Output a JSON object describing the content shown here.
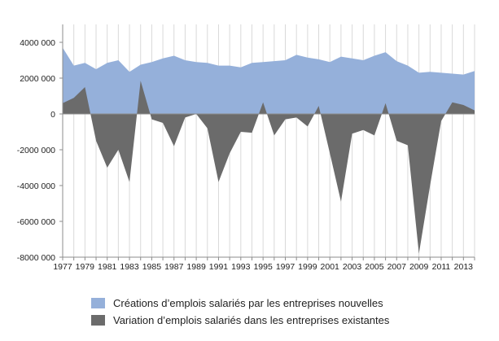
{
  "chart_data": {
    "type": "area",
    "title": "",
    "xlabel": "",
    "ylabel": "",
    "x": [
      1977,
      1978,
      1979,
      1980,
      1981,
      1982,
      1983,
      1984,
      1985,
      1986,
      1987,
      1988,
      1989,
      1990,
      1991,
      1992,
      1993,
      1994,
      1995,
      1996,
      1997,
      1998,
      1999,
      2000,
      2001,
      2002,
      2003,
      2004,
      2005,
      2006,
      2007,
      2008,
      2009,
      2010,
      2011,
      2012,
      2013,
      2014
    ],
    "x_tick_labels": [
      "1977",
      "1979",
      "1981",
      "1983",
      "1985",
      "1987",
      "1989",
      "1991",
      "1993",
      "1995",
      "1997",
      "1999",
      "2001",
      "2003",
      "2005",
      "2007",
      "2009",
      "2011",
      "2013"
    ],
    "x_tick_values": [
      1977,
      1979,
      1981,
      1983,
      1985,
      1987,
      1989,
      1991,
      1993,
      1995,
      1997,
      1999,
      2001,
      2003,
      2005,
      2007,
      2009,
      2011,
      2013
    ],
    "ylim": [
      -8000000,
      5000000
    ],
    "y_tick_values": [
      4000000,
      2000000,
      0,
      -2000000,
      -4000000,
      -6000000,
      -8000000
    ],
    "y_tick_labels": [
      "4000 000",
      "2000 000",
      "0",
      "-2000 000",
      "-4000 000",
      "-6000 000",
      "-8000 000"
    ],
    "grid": "vertical",
    "legend_position": "bottom",
    "series": [
      {
        "name": "Créations d’emplois salariés par les entreprises nouvelles",
        "color": "#95b0da",
        "values": [
          3700000,
          2700000,
          2850000,
          2500000,
          2850000,
          3000000,
          2350000,
          2750000,
          2900000,
          3100000,
          3250000,
          3000000,
          2900000,
          2850000,
          2700000,
          2700000,
          2600000,
          2850000,
          2900000,
          2950000,
          3000000,
          3300000,
          3150000,
          3050000,
          2900000,
          3200000,
          3100000,
          3000000,
          3250000,
          3450000,
          2950000,
          2700000,
          2300000,
          2350000,
          2300000,
          2250000,
          2200000,
          2400000
        ]
      },
      {
        "name": "Variation d’emplois salariés dans les entreprises existantes",
        "color": "#6b6b6b",
        "values": [
          600000,
          900000,
          1500000,
          -1500000,
          -3000000,
          -2000000,
          -3800000,
          1850000,
          -300000,
          -500000,
          -1800000,
          -200000,
          0,
          -800000,
          -3800000,
          -2200000,
          -1000000,
          -1050000,
          650000,
          -1200000,
          -300000,
          -200000,
          -700000,
          450000,
          -2200000,
          -4900000,
          -1100000,
          -900000,
          -1200000,
          600000,
          -1500000,
          -1750000,
          -7800000,
          -4000000,
          -400000,
          650000,
          500000,
          200000
        ]
      }
    ]
  }
}
